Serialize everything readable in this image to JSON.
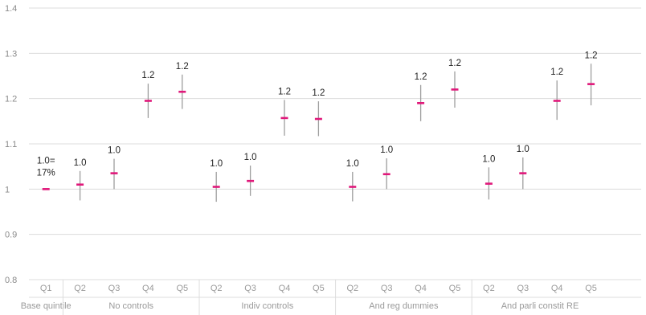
{
  "chart_data": {
    "type": "scatter",
    "title": "",
    "ylim": [
      0.8,
      1.4
    ],
    "yticks": [
      "0.8",
      "0.9",
      "1",
      "1.1",
      "1.2",
      "1.3",
      "1.4"
    ],
    "grid": true,
    "colors": {
      "marker": "#e0187a",
      "errorbar": "#9e9e9e",
      "grid": "#dcdcdc"
    },
    "groups": [
      {
        "name": "Base quintile",
        "points": [
          {
            "category": "Q1",
            "value": 1.0,
            "low": 1.0,
            "high": 1.0,
            "label": "1.0=",
            "label2": "17%"
          }
        ]
      },
      {
        "name": "No controls",
        "points": [
          {
            "category": "Q2",
            "value": 1.01,
            "low": 0.975,
            "high": 1.04,
            "label": "1.0"
          },
          {
            "category": "Q3",
            "value": 1.035,
            "low": 1.0,
            "high": 1.067,
            "label": "1.0"
          },
          {
            "category": "Q4",
            "value": 1.195,
            "low": 1.157,
            "high": 1.233,
            "label": "1.2"
          },
          {
            "category": "Q5",
            "value": 1.215,
            "low": 1.177,
            "high": 1.253,
            "label": "1.2"
          }
        ]
      },
      {
        "name": "Indiv controls",
        "points": [
          {
            "category": "Q2",
            "value": 1.005,
            "low": 0.972,
            "high": 1.038,
            "label": "1.0"
          },
          {
            "category": "Q3",
            "value": 1.018,
            "low": 0.985,
            "high": 1.052,
            "label": "1.0"
          },
          {
            "category": "Q4",
            "value": 1.157,
            "low": 1.118,
            "high": 1.197,
            "label": "1.2"
          },
          {
            "category": "Q5",
            "value": 1.155,
            "low": 1.117,
            "high": 1.194,
            "label": "1.2"
          }
        ]
      },
      {
        "name": "And reg dummies",
        "points": [
          {
            "category": "Q2",
            "value": 1.005,
            "low": 0.973,
            "high": 1.038,
            "label": "1.0"
          },
          {
            "category": "Q3",
            "value": 1.033,
            "low": 1.0,
            "high": 1.068,
            "label": "1.0"
          },
          {
            "category": "Q4",
            "value": 1.19,
            "low": 1.15,
            "high": 1.23,
            "label": "1.2"
          },
          {
            "category": "Q5",
            "value": 1.22,
            "low": 1.18,
            "high": 1.26,
            "label": "1.2"
          }
        ]
      },
      {
        "name": "And parli constit RE",
        "points": [
          {
            "category": "Q2",
            "value": 1.012,
            "low": 0.977,
            "high": 1.048,
            "label": "1.0"
          },
          {
            "category": "Q3",
            "value": 1.035,
            "low": 1.0,
            "high": 1.07,
            "label": "1.0"
          },
          {
            "category": "Q4",
            "value": 1.195,
            "low": 1.153,
            "high": 1.24,
            "label": "1.2"
          },
          {
            "category": "Q5",
            "value": 1.232,
            "low": 1.185,
            "high": 1.277,
            "label": "1.2"
          }
        ]
      }
    ]
  }
}
